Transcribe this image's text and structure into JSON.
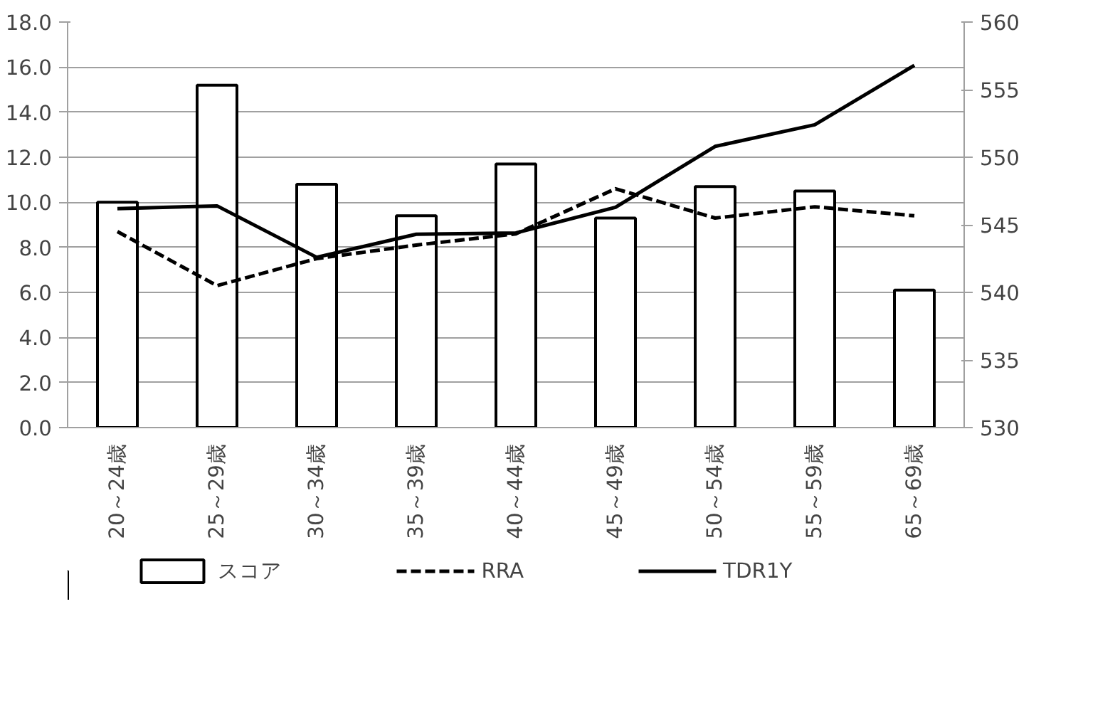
{
  "chart_data": {
    "type": "bar",
    "categories": [
      "20～24歳",
      "25～29歳",
      "30～34歳",
      "35～39歳",
      "40～44歳",
      "45～49歳",
      "50～54歳",
      "55～59歳",
      "65～69歳"
    ],
    "series": [
      {
        "name": "スコア",
        "color": "#ffffff",
        "values": [
          10.0,
          15.2,
          10.8,
          9.4,
          11.7,
          9.3,
          10.7,
          10.5,
          6.1
        ]
      },
      {
        "name": "RRA",
        "type": "line",
        "color": "#000000",
        "line_style": "dashed",
        "values": [
          8.7,
          6.3,
          7.5,
          8.1,
          8.6,
          10.6,
          9.3,
          9.8,
          9.4
        ]
      },
      {
        "name": "TDR1Y",
        "type": "line",
        "color": "#000000",
        "line_style": "solid",
        "axis": "y2",
        "values": [
          546.2,
          546.4,
          542.6,
          544.3,
          544.4,
          546.3,
          550.8,
          552.4,
          556.8
        ]
      }
    ],
    "ylim": [
      0,
      18
    ],
    "yticks": [
      {
        "value": 0,
        "label": "0.0"
      },
      {
        "value": 2,
        "label": "2.0"
      },
      {
        "value": 4,
        "label": "4.0"
      },
      {
        "value": 6,
        "label": "6.0"
      },
      {
        "value": 8,
        "label": "8.0"
      },
      {
        "value": 10,
        "label": "10.0"
      },
      {
        "value": 12,
        "label": "12.0"
      },
      {
        "value": 14,
        "label": "14.0"
      },
      {
        "value": 16,
        "label": "16.0"
      },
      {
        "value": 18,
        "label": "18.0"
      }
    ],
    "y2lim": [
      530,
      560
    ],
    "y2ticks": [
      530,
      535,
      540,
      545,
      550,
      555,
      560
    ],
    "grid": "y",
    "legend": "bottom",
    "marker": "none"
  }
}
